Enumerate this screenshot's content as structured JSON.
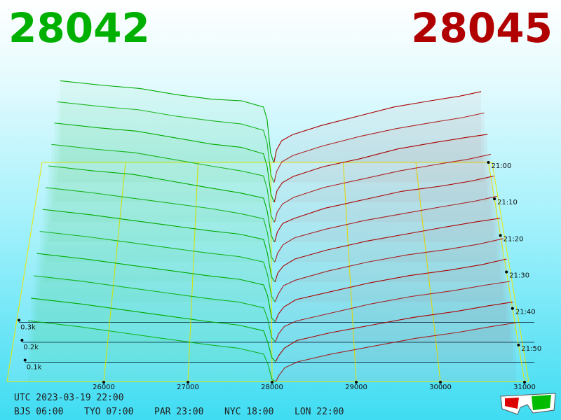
{
  "header": {
    "bid_price": 28042,
    "ask_price": 28045
  },
  "x_axis": {
    "ticks": [
      26000,
      27000,
      28000,
      29000,
      30000,
      31000
    ]
  },
  "time_axis": {
    "labels": [
      "21:00",
      "21:10",
      "21:20",
      "21:30",
      "21:40",
      "21:50"
    ]
  },
  "volume_axis": {
    "ticks": [
      {
        "value": 0.1,
        "label": "0.1k"
      },
      {
        "value": 0.2,
        "label": "0.2k"
      },
      {
        "value": 0.3,
        "label": "0.3k"
      }
    ]
  },
  "depth": {
    "bid_color": "#00aa00",
    "ask_color": "#aa0000",
    "bid_prices": [
      28042,
      28000,
      27950,
      27900,
      27600,
      27200,
      26700,
      26200,
      25700,
      25100
    ],
    "ask_prices": [
      28045,
      28080,
      28150,
      28300,
      28700,
      29200,
      29700,
      30200,
      30600,
      30900
    ],
    "snapshots": [
      {
        "bids": [
          0,
          0.06,
          0.28,
          0.36,
          0.4,
          0.41,
          0.44,
          0.48,
          0.5,
          0.53
        ],
        "asks": [
          0,
          0.08,
          0.14,
          0.18,
          0.24,
          0.3,
          0.36,
          0.4,
          0.43,
          0.46
        ]
      },
      {
        "bids": [
          0,
          0.05,
          0.25,
          0.33,
          0.37,
          0.39,
          0.42,
          0.46,
          0.48,
          0.51
        ],
        "asks": [
          0,
          0.07,
          0.13,
          0.17,
          0.23,
          0.29,
          0.34,
          0.38,
          0.41,
          0.44
        ]
      },
      {
        "bids": [
          0,
          0.05,
          0.22,
          0.3,
          0.34,
          0.36,
          0.4,
          0.44,
          0.46,
          0.49
        ],
        "asks": [
          0,
          0.07,
          0.12,
          0.16,
          0.22,
          0.27,
          0.33,
          0.37,
          0.4,
          0.42
        ]
      },
      {
        "bids": [
          0,
          0.04,
          0.2,
          0.28,
          0.31,
          0.34,
          0.38,
          0.42,
          0.44,
          0.47
        ],
        "asks": [
          0,
          0.06,
          0.11,
          0.15,
          0.21,
          0.26,
          0.31,
          0.35,
          0.38,
          0.41
        ]
      },
      {
        "bids": [
          0,
          0.04,
          0.18,
          0.26,
          0.29,
          0.32,
          0.36,
          0.4,
          0.42,
          0.45
        ],
        "asks": [
          0,
          0.06,
          0.11,
          0.14,
          0.2,
          0.25,
          0.3,
          0.33,
          0.36,
          0.39
        ]
      },
      {
        "bids": [
          0,
          0.03,
          0.17,
          0.25,
          0.28,
          0.31,
          0.34,
          0.37,
          0.4,
          0.43
        ],
        "asks": [
          0,
          0.05,
          0.1,
          0.14,
          0.19,
          0.24,
          0.28,
          0.32,
          0.35,
          0.38
        ]
      },
      {
        "bids": [
          0,
          0.03,
          0.16,
          0.24,
          0.27,
          0.29,
          0.32,
          0.35,
          0.38,
          0.41
        ],
        "asks": [
          0,
          0.05,
          0.09,
          0.13,
          0.18,
          0.23,
          0.27,
          0.31,
          0.34,
          0.36
        ]
      },
      {
        "bids": [
          0,
          0.03,
          0.15,
          0.22,
          0.25,
          0.27,
          0.3,
          0.33,
          0.36,
          0.39
        ],
        "asks": [
          0,
          0.04,
          0.09,
          0.12,
          0.17,
          0.22,
          0.26,
          0.29,
          0.32,
          0.35
        ]
      },
      {
        "bids": [
          0,
          0.02,
          0.14,
          0.2,
          0.23,
          0.25,
          0.28,
          0.31,
          0.34,
          0.37
        ],
        "asks": [
          0,
          0.04,
          0.08,
          0.12,
          0.16,
          0.21,
          0.25,
          0.28,
          0.31,
          0.34
        ]
      },
      {
        "bids": [
          0,
          0.02,
          0.12,
          0.18,
          0.21,
          0.23,
          0.26,
          0.29,
          0.32,
          0.35
        ],
        "asks": [
          0,
          0.04,
          0.08,
          0.11,
          0.15,
          0.2,
          0.24,
          0.27,
          0.3,
          0.32
        ]
      },
      {
        "bids": [
          0,
          0.02,
          0.1,
          0.16,
          0.19,
          0.21,
          0.24,
          0.27,
          0.3,
          0.33
        ],
        "asks": [
          0,
          0.03,
          0.07,
          0.11,
          0.15,
          0.19,
          0.23,
          0.26,
          0.29,
          0.31
        ]
      },
      {
        "bids": [
          0,
          0.01,
          0.09,
          0.14,
          0.17,
          0.19,
          0.22,
          0.25,
          0.28,
          0.31
        ],
        "asks": [
          0,
          0.03,
          0.07,
          0.1,
          0.14,
          0.18,
          0.22,
          0.25,
          0.28,
          0.3
        ]
      }
    ]
  },
  "footer": {
    "utc": "UTC 2023-03-19 22:00",
    "zones": [
      "BJS 06:00",
      "TYO 07:00",
      "PAR 23:00",
      "NYC 18:00",
      "LON 22:00"
    ]
  }
}
